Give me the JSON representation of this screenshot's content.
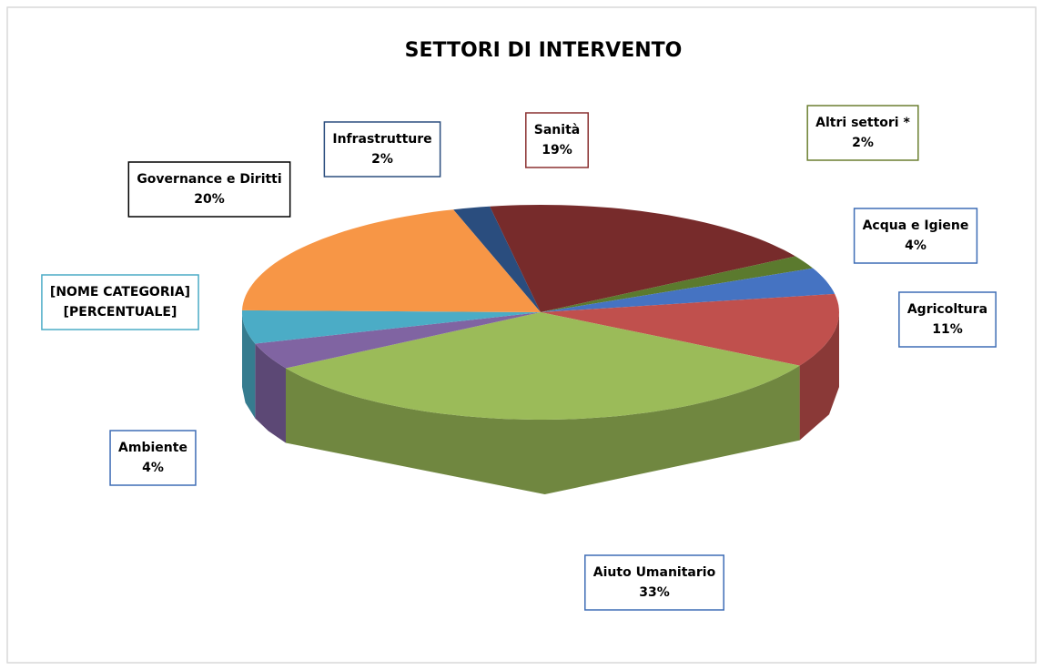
{
  "chart_data": {
    "type": "pie3d",
    "title": "SETTORI DI INTERVENTO",
    "categories": [
      "Infrastrutture",
      "Sanità",
      "Altri settori *",
      "Acqua e Igiene",
      "Agricoltura",
      "Aiuto Umanitario",
      "Ambiente",
      "[NOME CATEGORIA]",
      "Governance e Diritti"
    ],
    "values": [
      2,
      19,
      2,
      4,
      11,
      33,
      4,
      5,
      20
    ],
    "value_labels": [
      "2%",
      "19%",
      "2%",
      "4%",
      "11%",
      "33%",
      "4%",
      "[PERCENTUALE]",
      "20%"
    ],
    "colors": [
      "#2a4d7e",
      "#772b2b",
      "#5b7a2e",
      "#4573c2",
      "#c0504d",
      "#9bbb59",
      "#8064a2",
      "#4bacc6",
      "#f79646"
    ],
    "label_colors": [
      "#2a4d7e",
      "#8a3030",
      "#6b7f30",
      "#3e6db5",
      "#3e6db5",
      "#3e6db5",
      "#3e6db5",
      "#4bacc6",
      "#000000"
    ]
  }
}
